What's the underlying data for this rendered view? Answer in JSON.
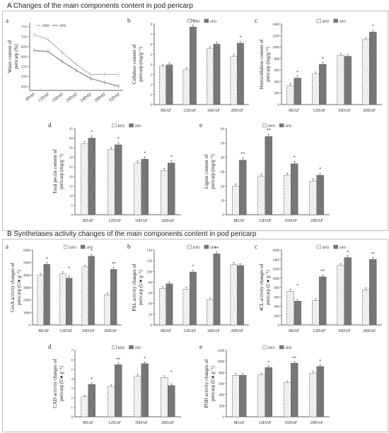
{
  "sections": [
    {
      "title": "A   Changes of the main components content in pod pericarp"
    },
    {
      "title": "B   Synthetases activity changes of the main components content in  pod pericarp"
    }
  ],
  "colors": {
    "rpd": "#ffffff",
    "spd": "#777777",
    "rpd_line": "#a9a9a9",
    "spd_line": "#6a6a6a"
  },
  "chart_data": [
    {
      "id": "A-a",
      "letter": "a",
      "type": "line",
      "legend": [
        "RPD",
        "SPD"
      ],
      "x": [
        "8DAF",
        "12DAF",
        "16DAF",
        "20DAF",
        "24DAF",
        "28DAF",
        "32DAF"
      ],
      "ylabel": "Water content of pericarp (%)",
      "yticks": [
        "45%",
        "50%",
        "55%",
        "60%",
        "65%",
        "70%",
        "75%"
      ],
      "ylim": [
        43,
        77
      ],
      "series": [
        {
          "name": "RPD",
          "values": [
            71,
            68.5,
            62,
            56,
            51,
            51,
            51
          ]
        },
        {
          "name": "SPD",
          "values": [
            63,
            62.5,
            57.5,
            53,
            49,
            47,
            45
          ]
        }
      ]
    },
    {
      "id": "A-b",
      "letter": "b",
      "type": "bar",
      "legend": [
        "RPD",
        "SPD"
      ],
      "categories": [
        "8DAF",
        "12DAF",
        "16DAF",
        "20DAF"
      ],
      "ylabel": "Cellulose content of pericarp (mg/g⁻¹)",
      "yticks": [
        "0",
        "1",
        "2",
        "3",
        "4",
        "5",
        "6",
        "7",
        "8"
      ],
      "ylim": [
        0,
        8
      ],
      "series": [
        {
          "name": "RPD",
          "values": [
            3.8,
            3.45,
            5.55,
            4.8
          ]
        },
        {
          "name": "SPD",
          "values": [
            3.95,
            7.7,
            6.0,
            6.1
          ]
        }
      ],
      "sig": [
        "",
        "**",
        "",
        "*"
      ]
    },
    {
      "id": "A-c",
      "letter": "c",
      "type": "bar",
      "legend": [
        "RPD",
        "SPD"
      ],
      "categories": [
        "8DAF",
        "12DAF",
        "16DAF",
        "20DAF"
      ],
      "ylabel": "Hemicellulose content of pericarp (mg/g⁻¹)",
      "yticks": [
        "0",
        "200",
        "400",
        "600",
        "800",
        "1000",
        "1200",
        "1400"
      ],
      "ylim": [
        0,
        1400
      ],
      "series": [
        {
          "name": "RPD",
          "values": [
            330,
            530,
            850,
            1130
          ]
        },
        {
          "name": "SPD",
          "values": [
            460,
            700,
            840,
            1260
          ]
        }
      ],
      "sig": [
        "*",
        "*",
        "",
        "*"
      ]
    },
    {
      "id": "A-d",
      "letter": "d",
      "type": "bar",
      "legend": [
        "RPD",
        "SPD"
      ],
      "categories": [
        "8DAF",
        "12DAF",
        "16DAF",
        "20DAF"
      ],
      "ylabel": "Total pectin content of pericarp (mg/g⁻¹)",
      "yticks": [
        "0",
        "5",
        "10",
        "15",
        "20",
        "25",
        "30",
        "35",
        "40",
        "45"
      ],
      "ylim": [
        0,
        45
      ],
      "series": [
        {
          "name": "RPD",
          "values": [
            37,
            34,
            27,
            23
          ]
        },
        {
          "name": "SPD",
          "values": [
            40,
            36.5,
            29,
            27
          ]
        }
      ],
      "sig": [
        "*",
        "*",
        "*",
        "*"
      ]
    },
    {
      "id": "A-e",
      "letter": "e",
      "type": "bar",
      "legend": [
        "RPD",
        "SPD"
      ],
      "categories": [
        "8DAF",
        "12DAF",
        "16DAF",
        "20DAF"
      ],
      "ylabel": "Lignin content of pericarp (mg/g⁻¹)",
      "yticks": [
        "0",
        "10",
        "20",
        "30",
        "40",
        "50",
        "60"
      ],
      "ylim": [
        0,
        60
      ],
      "series": [
        {
          "name": "RPD",
          "values": [
            20,
            27,
            27.5,
            23.5
          ]
        },
        {
          "name": "SPD",
          "values": [
            38,
            54.5,
            35.5,
            27.5
          ]
        }
      ],
      "sig": [
        "**",
        "**",
        "*",
        "*"
      ]
    },
    {
      "id": "B-a",
      "letter": "a",
      "type": "bar",
      "legend": [
        "RPD",
        "SPD"
      ],
      "categories": [
        "8DAF",
        "12DAF",
        "16DAF",
        "20DAF"
      ],
      "ylabel": "CesA activity changes of pericarp (U● g⁻¹)",
      "yticks": [
        "0",
        "1000",
        "2000",
        "3000",
        "4000",
        "5000",
        "6000"
      ],
      "ylim": [
        0,
        6000
      ],
      "series": [
        {
          "name": "RPD",
          "values": [
            3980,
            4100,
            4650,
            2400
          ]
        },
        {
          "name": "SPD",
          "values": [
            4850,
            3750,
            5500,
            4450
          ]
        }
      ],
      "sig": [
        "*",
        "*",
        "*",
        "**"
      ]
    },
    {
      "id": "B-b",
      "letter": "b",
      "type": "bar",
      "legend": [
        "RPD",
        "SPD"
      ],
      "categories": [
        "8DAF",
        "12DAF",
        "16DAF",
        "20DAF"
      ],
      "ylabel": "PAL activity changes of pericarp (U● g⁻¹)",
      "yticks": [
        "0",
        "20",
        "40",
        "60",
        "80",
        "100",
        "120",
        "140"
      ],
      "ylim": [
        0,
        140
      ],
      "series": [
        {
          "name": "RPD",
          "values": [
            68,
            67,
            47,
            113
          ]
        },
        {
          "name": "SPD",
          "values": [
            77,
            99,
            133,
            111
          ]
        }
      ],
      "sig": [
        "",
        "*",
        "**",
        ""
      ]
    },
    {
      "id": "B-c",
      "letter": "c",
      "type": "bar",
      "legend": [
        "RPD",
        "SPD"
      ],
      "categories": [
        "8DAF",
        "12DAF",
        "16DAF",
        "20DAF"
      ],
      "ylabel": "4CL activity changes of pericarp (U● g⁻¹)",
      "yticks": [
        "0",
        "200",
        "400",
        "600",
        "800",
        "1000",
        "1200",
        "1400",
        "1600"
      ],
      "ylim": [
        0,
        1600
      ],
      "series": [
        {
          "name": "RPD",
          "values": [
            720,
            520,
            1270,
            750
          ]
        },
        {
          "name": "SPD",
          "values": [
            510,
            1030,
            1440,
            1400
          ]
        }
      ],
      "sig": [
        "*",
        "**",
        "*",
        "**"
      ]
    },
    {
      "id": "B-d",
      "letter": "d",
      "type": "bar",
      "legend": [
        "RPD",
        "SPD"
      ],
      "categories": [
        "8DAF",
        "12DAF",
        "16DAF",
        "20DAF"
      ],
      "ylabel": "CAD activity changes of pericarp (U● g⁻¹)",
      "yticks": [
        "0",
        "1",
        "2",
        "3",
        "4",
        "5",
        "6",
        "7"
      ],
      "ylim": [
        0,
        7
      ],
      "series": [
        {
          "name": "RPD",
          "values": [
            2.1,
            3.2,
            4.3,
            4.15
          ]
        },
        {
          "name": "SPD",
          "values": [
            3.4,
            5.5,
            5.6,
            3.3
          ]
        }
      ],
      "sig": [
        "*",
        "**",
        "*",
        "*"
      ]
    },
    {
      "id": "B-e",
      "letter": "e",
      "type": "bar",
      "legend": [
        "RPD",
        "SPD"
      ],
      "categories": [
        "8DAF",
        "12DAF",
        "16DAF",
        "20DAF"
      ],
      "ylabel": "POD activity changes of pericarp (U● g⁻¹)",
      "yticks": [
        "0",
        "200",
        "400",
        "600",
        "800",
        "1000",
        "1200"
      ],
      "ylim": [
        0,
        1200
      ],
      "series": [
        {
          "name": "RPD",
          "values": [
            750,
            760,
            620,
            790
          ]
        },
        {
          "name": "SPD",
          "values": [
            750,
            890,
            970,
            910
          ]
        }
      ],
      "sig": [
        "",
        "*",
        "**",
        "*"
      ]
    }
  ]
}
